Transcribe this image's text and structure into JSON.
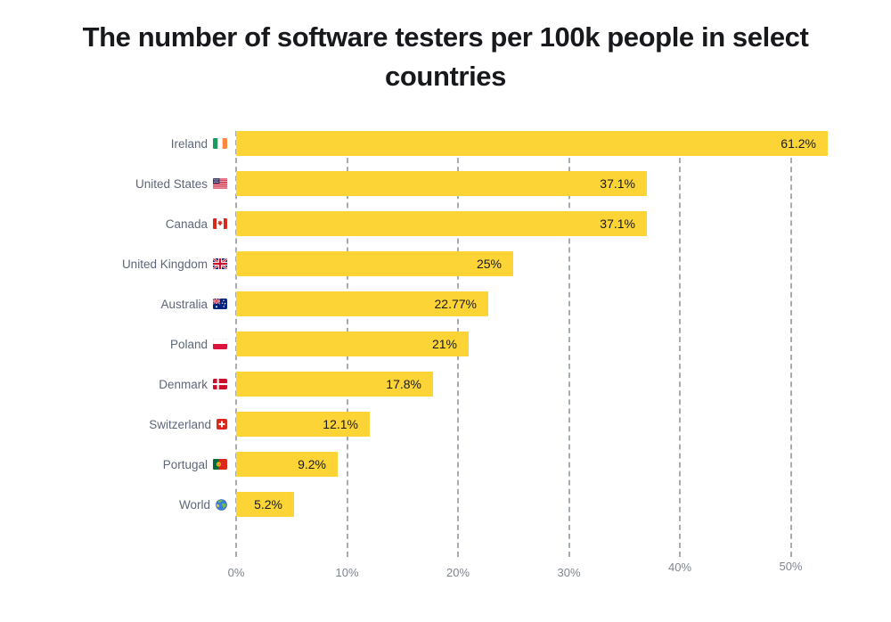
{
  "title": "The number of software testers per 100k people in select countries",
  "chart_data": {
    "type": "bar",
    "orientation": "horizontal",
    "title": "The number of software testers per 100k people in select countries",
    "categories": [
      "Ireland",
      "United States",
      "Canada",
      "United Kingdom",
      "Australia",
      "Poland",
      "Denmark",
      "Switzerland",
      "Portugal",
      "World"
    ],
    "values": [
      61.2,
      37.1,
      37.1,
      25,
      22.77,
      21,
      17.8,
      12.1,
      9.2,
      5.2
    ],
    "value_labels": [
      "61.2%",
      "37.1%",
      "37.1%",
      "25%",
      "22.77%",
      "21%",
      "17.8%",
      "12.1%",
      "9.2%",
      "5.2%"
    ],
    "flags": [
      "ireland",
      "united-states",
      "canada",
      "united-kingdom",
      "australia",
      "poland",
      "denmark",
      "switzerland",
      "portugal",
      "world"
    ],
    "x_ticks": [
      "0%",
      "10%",
      "20%",
      "30%",
      "40%",
      "50%"
    ],
    "x_tick_values": [
      0,
      10,
      20,
      30,
      40,
      50
    ],
    "xlabel": "",
    "ylabel": "",
    "grid": "vertical-dashed",
    "legend": "none",
    "bar_color": "#FCD435",
    "gridline_color": "#A6ACB3",
    "category_label_color": "#5D6778",
    "tick_label_color": "#7E858F",
    "value_label_color": "#17191C",
    "title_color": "#17191C"
  }
}
